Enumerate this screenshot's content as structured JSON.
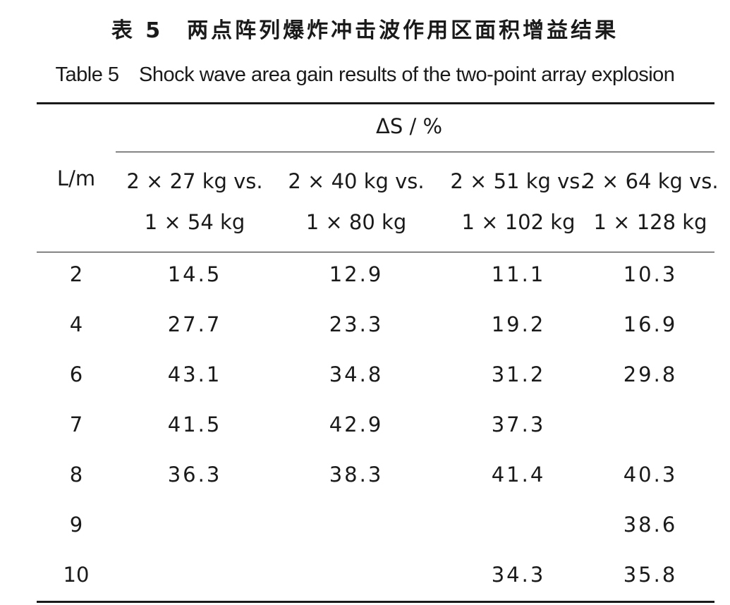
{
  "title_cn": "表 5　两点阵列爆炸冲击波作用区面积增益结果",
  "title_en": "Table 5　Shock wave area gain results of the two-point array explosion",
  "header": {
    "row_label": "L/m",
    "group_label": "ΔS / %",
    "columns": [
      {
        "line1": "2 × 27 kg vs.",
        "line2": "1 × 54 kg"
      },
      {
        "line1": "2 × 40 kg vs.",
        "line2": "1 × 80 kg"
      },
      {
        "line1": "2 × 51 kg vs.",
        "line2": "1 × 102 kg"
      },
      {
        "line1": "2 × 64 kg vs.",
        "line2": "1 × 128 kg"
      }
    ]
  },
  "rows": [
    {
      "L": "2",
      "values": [
        "14.5",
        "12.9",
        "11.1",
        "10.3"
      ]
    },
    {
      "L": "4",
      "values": [
        "27.7",
        "23.3",
        "19.2",
        "16.9"
      ]
    },
    {
      "L": "6",
      "values": [
        "43.1",
        "34.8",
        "31.2",
        "29.8"
      ]
    },
    {
      "L": "7",
      "values": [
        "41.5",
        "42.9",
        "37.3",
        ""
      ]
    },
    {
      "L": "8",
      "values": [
        "36.3",
        "38.3",
        "41.4",
        "40.3"
      ]
    },
    {
      "L": "9",
      "values": [
        "",
        "",
        "",
        "38.6"
      ]
    },
    {
      "L": "10",
      "values": [
        "",
        "",
        "34.3",
        "35.8"
      ]
    }
  ]
}
